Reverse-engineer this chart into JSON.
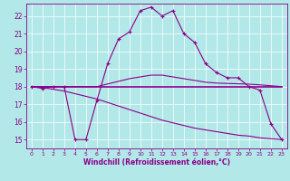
{
  "title": "",
  "xlabel": "Windchill (Refroidissement éolien,°C)",
  "background_color": "#b2e8e8",
  "line_color": "#8b008b",
  "grid_color": "#ffffff",
  "xlim": [
    -0.5,
    23.5
  ],
  "ylim": [
    14.5,
    22.7
  ],
  "yticks": [
    15,
    16,
    17,
    18,
    19,
    20,
    21,
    22
  ],
  "xticks": [
    0,
    1,
    2,
    3,
    4,
    5,
    6,
    7,
    8,
    9,
    10,
    11,
    12,
    13,
    14,
    15,
    16,
    17,
    18,
    19,
    20,
    21,
    22,
    23
  ],
  "series": [
    {
      "x": [
        0,
        1,
        2,
        3,
        4,
        5,
        6,
        7,
        8,
        9,
        10,
        11,
        12,
        13,
        14,
        15,
        16,
        17,
        18,
        19,
        20,
        21,
        22,
        23
      ],
      "y": [
        18,
        17.9,
        18,
        18,
        15,
        15,
        17.2,
        19.3,
        20.7,
        21.1,
        22.3,
        22.5,
        22,
        22.3,
        21,
        20.5,
        19.3,
        18.8,
        18.5,
        18.5,
        18,
        17.8,
        15.9,
        15
      ],
      "marker": "+"
    },
    {
      "x": [
        0,
        23
      ],
      "y": [
        18,
        18
      ],
      "marker": null,
      "linewidth": 1.2
    },
    {
      "x": [
        0,
        1,
        2,
        3,
        4,
        5,
        6,
        7,
        8,
        9,
        10,
        11,
        12,
        13,
        14,
        15,
        16,
        17,
        18,
        19,
        20,
        21,
        22,
        23
      ],
      "y": [
        18,
        18,
        18,
        18,
        18,
        18,
        18,
        18.15,
        18.3,
        18.45,
        18.55,
        18.65,
        18.65,
        18.55,
        18.45,
        18.35,
        18.25,
        18.2,
        18.18,
        18.16,
        18.14,
        18.1,
        18.05,
        18
      ],
      "marker": null,
      "linewidth": 0.8
    },
    {
      "x": [
        0,
        1,
        2,
        3,
        4,
        5,
        6,
        7,
        8,
        9,
        10,
        11,
        12,
        13,
        14,
        15,
        16,
        17,
        18,
        19,
        20,
        21,
        22,
        23
      ],
      "y": [
        18,
        17.95,
        17.85,
        17.75,
        17.6,
        17.45,
        17.3,
        17.1,
        16.9,
        16.7,
        16.5,
        16.3,
        16.1,
        15.95,
        15.8,
        15.65,
        15.55,
        15.45,
        15.35,
        15.25,
        15.2,
        15.1,
        15.05,
        15
      ],
      "marker": null,
      "linewidth": 0.8
    }
  ]
}
